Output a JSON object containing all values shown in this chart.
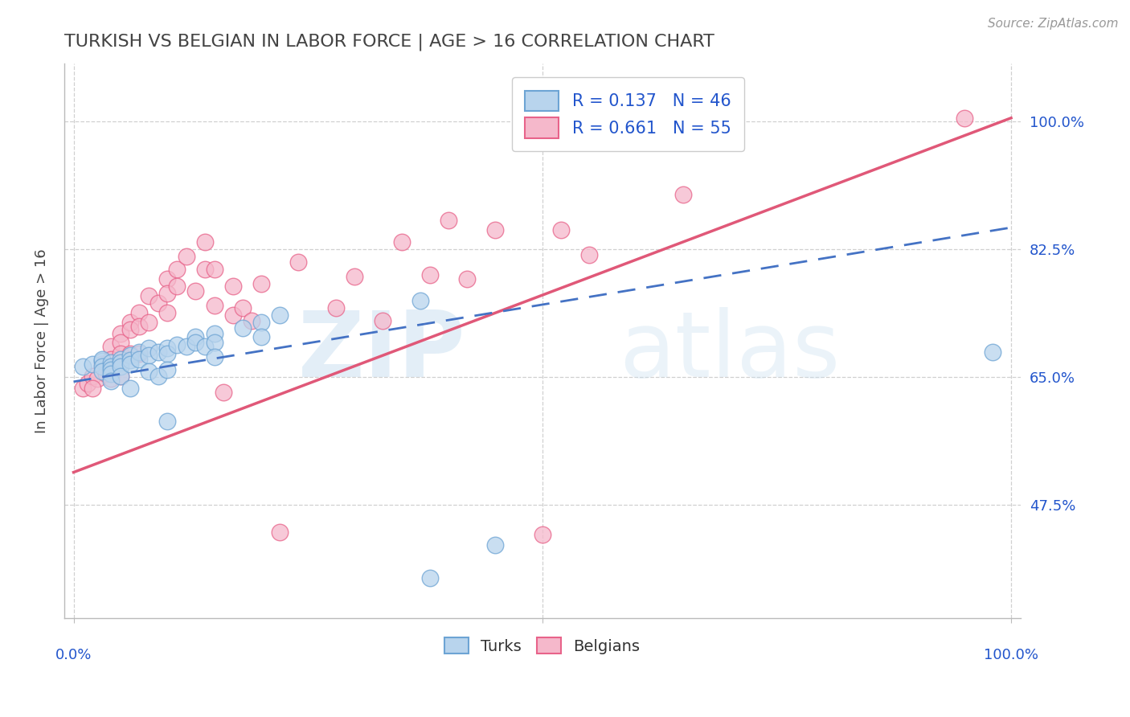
{
  "title": "TURKISH VS BELGIAN IN LABOR FORCE | AGE > 16 CORRELATION CHART",
  "ylabel": "In Labor Force | Age > 16",
  "source_text": "Source: ZipAtlas.com",
  "watermark_zip": "ZIP",
  "watermark_atlas": "atlas",
  "x_ticks": [
    0.0,
    0.1,
    0.2,
    0.3,
    0.4,
    0.5,
    0.6,
    0.7,
    0.8,
    0.9,
    1.0
  ],
  "y_tick_labels": [
    "47.5%",
    "65.0%",
    "82.5%",
    "100.0%"
  ],
  "y_ticks": [
    0.475,
    0.65,
    0.825,
    1.0
  ],
  "xlim": [
    -0.01,
    1.01
  ],
  "ylim": [
    0.32,
    1.08
  ],
  "turks_R": 0.137,
  "turks_N": 46,
  "belgians_R": 0.661,
  "belgians_N": 55,
  "turks_color": "#b8d4ed",
  "belgians_color": "#f5b8cb",
  "turks_edge_color": "#6da4d4",
  "belgians_edge_color": "#e8638a",
  "turks_line_color": "#4472c4",
  "belgians_line_color": "#e05878",
  "legend_turks_label": "R = 0.137   N = 46",
  "legend_belgians_label": "R = 0.661   N = 55",
  "turks_x": [
    0.01,
    0.02,
    0.03,
    0.03,
    0.03,
    0.03,
    0.04,
    0.04,
    0.04,
    0.04,
    0.04,
    0.05,
    0.05,
    0.05,
    0.05,
    0.06,
    0.06,
    0.06,
    0.06,
    0.07,
    0.07,
    0.08,
    0.08,
    0.08,
    0.09,
    0.09,
    0.1,
    0.1,
    0.1,
    0.1,
    0.11,
    0.12,
    0.13,
    0.13,
    0.14,
    0.15,
    0.15,
    0.15,
    0.18,
    0.2,
    0.2,
    0.22,
    0.37,
    0.38,
    0.45,
    0.98
  ],
  "turks_y": [
    0.665,
    0.668,
    0.672,
    0.675,
    0.665,
    0.658,
    0.67,
    0.665,
    0.66,
    0.655,
    0.645,
    0.675,
    0.67,
    0.665,
    0.652,
    0.68,
    0.674,
    0.668,
    0.635,
    0.685,
    0.675,
    0.69,
    0.68,
    0.658,
    0.685,
    0.652,
    0.69,
    0.682,
    0.66,
    0.59,
    0.695,
    0.692,
    0.705,
    0.698,
    0.692,
    0.71,
    0.698,
    0.678,
    0.718,
    0.725,
    0.705,
    0.735,
    0.755,
    0.375,
    0.42,
    0.685
  ],
  "belgians_x": [
    0.01,
    0.015,
    0.02,
    0.025,
    0.02,
    0.03,
    0.035,
    0.04,
    0.04,
    0.04,
    0.05,
    0.05,
    0.05,
    0.05,
    0.06,
    0.06,
    0.06,
    0.07,
    0.07,
    0.07,
    0.08,
    0.08,
    0.09,
    0.1,
    0.1,
    0.1,
    0.11,
    0.11,
    0.12,
    0.13,
    0.14,
    0.14,
    0.15,
    0.15,
    0.16,
    0.17,
    0.17,
    0.18,
    0.19,
    0.2,
    0.22,
    0.24,
    0.28,
    0.3,
    0.33,
    0.35,
    0.38,
    0.4,
    0.42,
    0.45,
    0.5,
    0.52,
    0.55,
    0.65,
    0.95
  ],
  "belgians_y": [
    0.635,
    0.642,
    0.652,
    0.648,
    0.635,
    0.668,
    0.655,
    0.692,
    0.675,
    0.648,
    0.71,
    0.698,
    0.682,
    0.652,
    0.725,
    0.715,
    0.682,
    0.738,
    0.72,
    0.682,
    0.762,
    0.725,
    0.752,
    0.785,
    0.765,
    0.738,
    0.798,
    0.775,
    0.815,
    0.768,
    0.835,
    0.798,
    0.798,
    0.748,
    0.63,
    0.775,
    0.735,
    0.745,
    0.728,
    0.778,
    0.438,
    0.808,
    0.745,
    0.788,
    0.728,
    0.835,
    0.79,
    0.865,
    0.785,
    0.852,
    0.435,
    0.852,
    0.818,
    0.9,
    1.005
  ],
  "background_color": "#ffffff",
  "grid_color": "#d0d0d0",
  "title_color": "#444444",
  "axis_label_color": "#444444",
  "tick_color": "#2255cc",
  "right_tick_color": "#2255cc"
}
